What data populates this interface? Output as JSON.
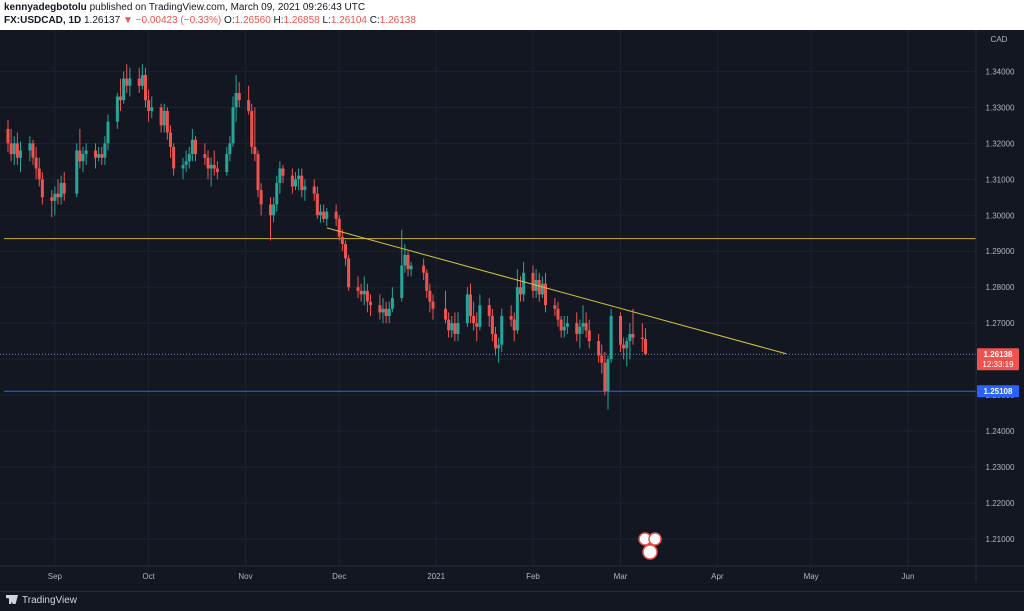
{
  "header": {
    "author": "kennyadegbotolu",
    "published": " published on TradingView.com, March 09, 2021 09:26:43 UTC",
    "symbol": "FX:USDCAD, 1D",
    "last": "1.26137",
    "change_arrow": "▼",
    "change": "−0.00423 (−0.33%)",
    "open_label": "O:",
    "open": "1.26560",
    "high_label": "H:",
    "high": "1.26858",
    "low_label": "L:",
    "low": "1.26104",
    "close_label": "C:",
    "close": "1.26138"
  },
  "footer": {
    "brand": "TradingView"
  },
  "colors": {
    "background": "#131722",
    "up": "#26a69a",
    "down": "#ef5350",
    "grid": "#1f2330",
    "horizontal_level": "#c9b038",
    "trendline": "#d4c73a",
    "blue_level": "#2962ff"
  },
  "chart_data": {
    "type": "candlestick",
    "currency": "CAD",
    "y_ticks": [
      "1.34000",
      "1.33000",
      "1.32000",
      "1.31000",
      "1.30000",
      "1.29000",
      "1.28000",
      "1.27000",
      "1.26000",
      "1.25000",
      "1.24000",
      "1.23000",
      "1.22000",
      "1.21000"
    ],
    "x_ticks": [
      "Sep",
      "Oct",
      "Nov",
      "Dec",
      "2021",
      "Feb",
      "Mar",
      "Apr",
      "May",
      "Jun"
    ],
    "ylim": [
      1.2025,
      1.3515
    ],
    "grid": true,
    "price_labels": [
      {
        "value": 1.26138,
        "text": "1.26138",
        "sub": "12:33:19",
        "color": "#ef5350"
      },
      {
        "value": 1.25108,
        "text": "1.25108",
        "sub": "",
        "color": "#2962ff"
      }
    ],
    "horizontal_levels": [
      {
        "value": 1.2935,
        "color": "#c9b038"
      },
      {
        "value": 1.25108,
        "color": "#2962ff"
      }
    ],
    "trendline": {
      "x1": "2020-11-27",
      "y1": 1.2965,
      "x2": "2021-04-23",
      "y2": 1.2615
    },
    "candles": [
      {
        "d": "2020-08-17",
        "o": 1.324,
        "h": 1.3265,
        "l": 1.3175,
        "c": 1.32
      },
      {
        "d": "2020-08-18",
        "o": 1.32,
        "h": 1.324,
        "l": 1.315,
        "c": 1.317
      },
      {
        "d": "2020-08-19",
        "o": 1.317,
        "h": 1.322,
        "l": 1.314,
        "c": 1.32
      },
      {
        "d": "2020-08-20",
        "o": 1.32,
        "h": 1.323,
        "l": 1.314,
        "c": 1.316
      },
      {
        "d": "2020-08-21",
        "o": 1.316,
        "h": 1.3205,
        "l": 1.312,
        "c": 1.318
      },
      {
        "d": "2020-08-24",
        "o": 1.318,
        "h": 1.322,
        "l": 1.315,
        "c": 1.32
      },
      {
        "d": "2020-08-25",
        "o": 1.32,
        "h": 1.321,
        "l": 1.314,
        "c": 1.316
      },
      {
        "d": "2020-08-26",
        "o": 1.316,
        "h": 1.319,
        "l": 1.31,
        "c": 1.313
      },
      {
        "d": "2020-08-27",
        "o": 1.313,
        "h": 1.316,
        "l": 1.308,
        "c": 1.31
      },
      {
        "d": "2020-08-28",
        "o": 1.31,
        "h": 1.312,
        "l": 1.303,
        "c": 1.305
      },
      {
        "d": "2020-08-31",
        "o": 1.305,
        "h": 1.307,
        "l": 1.2995,
        "c": 1.304
      },
      {
        "d": "2020-09-01",
        "o": 1.304,
        "h": 1.308,
        "l": 1.3,
        "c": 1.306
      },
      {
        "d": "2020-09-02",
        "o": 1.306,
        "h": 1.31,
        "l": 1.303,
        "c": 1.305
      },
      {
        "d": "2020-09-03",
        "o": 1.305,
        "h": 1.311,
        "l": 1.303,
        "c": 1.309
      },
      {
        "d": "2020-09-04",
        "o": 1.309,
        "h": 1.312,
        "l": 1.304,
        "c": 1.306
      },
      {
        "d": "2020-09-08",
        "o": 1.306,
        "h": 1.32,
        "l": 1.305,
        "c": 1.318
      },
      {
        "d": "2020-09-09",
        "o": 1.318,
        "h": 1.324,
        "l": 1.313,
        "c": 1.315
      },
      {
        "d": "2020-09-10",
        "o": 1.315,
        "h": 1.319,
        "l": 1.312,
        "c": 1.317
      },
      {
        "d": "2020-09-11",
        "o": 1.317,
        "h": 1.32,
        "l": 1.314,
        "c": 1.318
      },
      {
        "d": "2020-09-14",
        "o": 1.318,
        "h": 1.32,
        "l": 1.313,
        "c": 1.316
      },
      {
        "d": "2020-09-15",
        "o": 1.316,
        "h": 1.319,
        "l": 1.315,
        "c": 1.317
      },
      {
        "d": "2020-09-16",
        "o": 1.317,
        "h": 1.319,
        "l": 1.314,
        "c": 1.316
      },
      {
        "d": "2020-09-17",
        "o": 1.316,
        "h": 1.322,
        "l": 1.314,
        "c": 1.32
      },
      {
        "d": "2020-09-18",
        "o": 1.32,
        "h": 1.328,
        "l": 1.318,
        "c": 1.326
      },
      {
        "d": "2020-09-21",
        "o": 1.326,
        "h": 1.334,
        "l": 1.324,
        "c": 1.333
      },
      {
        "d": "2020-09-22",
        "o": 1.333,
        "h": 1.338,
        "l": 1.329,
        "c": 1.332
      },
      {
        "d": "2020-09-23",
        "o": 1.332,
        "h": 1.34,
        "l": 1.331,
        "c": 1.338
      },
      {
        "d": "2020-09-24",
        "o": 1.338,
        "h": 1.342,
        "l": 1.334,
        "c": 1.336
      },
      {
        "d": "2020-09-25",
        "o": 1.336,
        "h": 1.341,
        "l": 1.333,
        "c": 1.338
      },
      {
        "d": "2020-09-28",
        "o": 1.338,
        "h": 1.341,
        "l": 1.334,
        "c": 1.336
      },
      {
        "d": "2020-09-29",
        "o": 1.336,
        "h": 1.342,
        "l": 1.335,
        "c": 1.339
      },
      {
        "d": "2020-09-30",
        "o": 1.339,
        "h": 1.341,
        "l": 1.33,
        "c": 1.332
      },
      {
        "d": "2020-10-01",
        "o": 1.332,
        "h": 1.335,
        "l": 1.326,
        "c": 1.329
      },
      {
        "d": "2020-10-02",
        "o": 1.329,
        "h": 1.333,
        "l": 1.327,
        "c": 1.33
      },
      {
        "d": "2020-10-05",
        "o": 1.33,
        "h": 1.331,
        "l": 1.323,
        "c": 1.325
      },
      {
        "d": "2020-10-06",
        "o": 1.325,
        "h": 1.331,
        "l": 1.323,
        "c": 1.329
      },
      {
        "d": "2020-10-07",
        "o": 1.329,
        "h": 1.33,
        "l": 1.321,
        "c": 1.323
      },
      {
        "d": "2020-10-08",
        "o": 1.323,
        "h": 1.325,
        "l": 1.316,
        "c": 1.319
      },
      {
        "d": "2020-10-09",
        "o": 1.319,
        "h": 1.32,
        "l": 1.311,
        "c": 1.313
      },
      {
        "d": "2020-10-12",
        "o": 1.313,
        "h": 1.316,
        "l": 1.31,
        "c": 1.314
      },
      {
        "d": "2020-10-13",
        "o": 1.314,
        "h": 1.318,
        "l": 1.312,
        "c": 1.315
      },
      {
        "d": "2020-10-14",
        "o": 1.315,
        "h": 1.319,
        "l": 1.313,
        "c": 1.317
      },
      {
        "d": "2020-10-15",
        "o": 1.317,
        "h": 1.324,
        "l": 1.315,
        "c": 1.321
      },
      {
        "d": "2020-10-16",
        "o": 1.321,
        "h": 1.322,
        "l": 1.315,
        "c": 1.317
      },
      {
        "d": "2020-10-19",
        "o": 1.317,
        "h": 1.32,
        "l": 1.314,
        "c": 1.316
      },
      {
        "d": "2020-10-20",
        "o": 1.316,
        "h": 1.318,
        "l": 1.31,
        "c": 1.313
      },
      {
        "d": "2020-10-21",
        "o": 1.313,
        "h": 1.316,
        "l": 1.308,
        "c": 1.314
      },
      {
        "d": "2020-10-22",
        "o": 1.314,
        "h": 1.318,
        "l": 1.311,
        "c": 1.313
      },
      {
        "d": "2020-10-23",
        "o": 1.313,
        "h": 1.315,
        "l": 1.31,
        "c": 1.312
      },
      {
        "d": "2020-10-26",
        "o": 1.312,
        "h": 1.319,
        "l": 1.311,
        "c": 1.317
      },
      {
        "d": "2020-10-27",
        "o": 1.317,
        "h": 1.322,
        "l": 1.315,
        "c": 1.32
      },
      {
        "d": "2020-10-28",
        "o": 1.32,
        "h": 1.333,
        "l": 1.319,
        "c": 1.33
      },
      {
        "d": "2020-10-29",
        "o": 1.33,
        "h": 1.339,
        "l": 1.326,
        "c": 1.334
      },
      {
        "d": "2020-10-30",
        "o": 1.334,
        "h": 1.337,
        "l": 1.33,
        "c": 1.332
      },
      {
        "d": "2020-11-02",
        "o": 1.332,
        "h": 1.336,
        "l": 1.328,
        "c": 1.329
      },
      {
        "d": "2020-11-03",
        "o": 1.329,
        "h": 1.331,
        "l": 1.317,
        "c": 1.319
      },
      {
        "d": "2020-11-04",
        "o": 1.319,
        "h": 1.33,
        "l": 1.315,
        "c": 1.317
      },
      {
        "d": "2020-11-05",
        "o": 1.317,
        "h": 1.318,
        "l": 1.305,
        "c": 1.307
      },
      {
        "d": "2020-11-06",
        "o": 1.307,
        "h": 1.309,
        "l": 1.3,
        "c": 1.303
      },
      {
        "d": "2020-11-09",
        "o": 1.303,
        "h": 1.305,
        "l": 1.293,
        "c": 1.3
      },
      {
        "d": "2020-11-10",
        "o": 1.3,
        "h": 1.305,
        "l": 1.298,
        "c": 1.303
      },
      {
        "d": "2020-11-11",
        "o": 1.303,
        "h": 1.311,
        "l": 1.301,
        "c": 1.309
      },
      {
        "d": "2020-11-12",
        "o": 1.309,
        "h": 1.315,
        "l": 1.306,
        "c": 1.313
      },
      {
        "d": "2020-11-13",
        "o": 1.313,
        "h": 1.314,
        "l": 1.309,
        "c": 1.311
      },
      {
        "d": "2020-11-16",
        "o": 1.311,
        "h": 1.313,
        "l": 1.306,
        "c": 1.308
      },
      {
        "d": "2020-11-17",
        "o": 1.308,
        "h": 1.312,
        "l": 1.307,
        "c": 1.31
      },
      {
        "d": "2020-11-18",
        "o": 1.31,
        "h": 1.313,
        "l": 1.307,
        "c": 1.311
      },
      {
        "d": "2020-11-19",
        "o": 1.311,
        "h": 1.313,
        "l": 1.305,
        "c": 1.307
      },
      {
        "d": "2020-11-20",
        "o": 1.307,
        "h": 1.31,
        "l": 1.304,
        "c": 1.308
      },
      {
        "d": "2020-11-23",
        "o": 1.308,
        "h": 1.31,
        "l": 1.304,
        "c": 1.306
      },
      {
        "d": "2020-11-24",
        "o": 1.306,
        "h": 1.308,
        "l": 1.299,
        "c": 1.3
      },
      {
        "d": "2020-11-25",
        "o": 1.3,
        "h": 1.303,
        "l": 1.298,
        "c": 1.301
      },
      {
        "d": "2020-11-26",
        "o": 1.301,
        "h": 1.303,
        "l": 1.298,
        "c": 1.299
      },
      {
        "d": "2020-11-27",
        "o": 1.299,
        "h": 1.302,
        "l": 1.297,
        "c": 1.301
      },
      {
        "d": "2020-11-30",
        "o": 1.301,
        "h": 1.303,
        "l": 1.297,
        "c": 1.299
      },
      {
        "d": "2020-12-01",
        "o": 1.299,
        "h": 1.3,
        "l": 1.293,
        "c": 1.294
      },
      {
        "d": "2020-12-02",
        "o": 1.294,
        "h": 1.296,
        "l": 1.29,
        "c": 1.292
      },
      {
        "d": "2020-12-03",
        "o": 1.292,
        "h": 1.293,
        "l": 1.286,
        "c": 1.288
      },
      {
        "d": "2020-12-04",
        "o": 1.288,
        "h": 1.289,
        "l": 1.279,
        "c": 1.28
      },
      {
        "d": "2020-12-07",
        "o": 1.28,
        "h": 1.283,
        "l": 1.277,
        "c": 1.279
      },
      {
        "d": "2020-12-08",
        "o": 1.279,
        "h": 1.281,
        "l": 1.276,
        "c": 1.278
      },
      {
        "d": "2020-12-09",
        "o": 1.278,
        "h": 1.283,
        "l": 1.275,
        "c": 1.279
      },
      {
        "d": "2020-12-10",
        "o": 1.279,
        "h": 1.281,
        "l": 1.273,
        "c": 1.276
      },
      {
        "d": "2020-12-11",
        "o": 1.276,
        "h": 1.278,
        "l": 1.272,
        "c": 1.275
      },
      {
        "d": "2020-12-14",
        "o": 1.275,
        "h": 1.278,
        "l": 1.271,
        "c": 1.273
      },
      {
        "d": "2020-12-15",
        "o": 1.273,
        "h": 1.277,
        "l": 1.27,
        "c": 1.274
      },
      {
        "d": "2020-12-16",
        "o": 1.274,
        "h": 1.276,
        "l": 1.27,
        "c": 1.272
      },
      {
        "d": "2020-12-17",
        "o": 1.272,
        "h": 1.276,
        "l": 1.27,
        "c": 1.274
      },
      {
        "d": "2020-12-18",
        "o": 1.274,
        "h": 1.28,
        "l": 1.273,
        "c": 1.277
      },
      {
        "d": "2020-12-21",
        "o": 1.277,
        "h": 1.296,
        "l": 1.276,
        "c": 1.286
      },
      {
        "d": "2020-12-22",
        "o": 1.286,
        "h": 1.292,
        "l": 1.284,
        "c": 1.289
      },
      {
        "d": "2020-12-23",
        "o": 1.289,
        "h": 1.29,
        "l": 1.283,
        "c": 1.285
      },
      {
        "d": "2020-12-24",
        "o": 1.285,
        "h": 1.287,
        "l": 1.283,
        "c": 1.286
      },
      {
        "d": "2020-12-28",
        "o": 1.286,
        "h": 1.288,
        "l": 1.282,
        "c": 1.284
      },
      {
        "d": "2020-12-29",
        "o": 1.284,
        "h": 1.285,
        "l": 1.277,
        "c": 1.279
      },
      {
        "d": "2020-12-30",
        "o": 1.279,
        "h": 1.281,
        "l": 1.273,
        "c": 1.276
      },
      {
        "d": "2020-12-31",
        "o": 1.276,
        "h": 1.278,
        "l": 1.271,
        "c": 1.274
      },
      {
        "d": "2021-01-04",
        "o": 1.274,
        "h": 1.279,
        "l": 1.27,
        "c": 1.271
      },
      {
        "d": "2021-01-05",
        "o": 1.271,
        "h": 1.273,
        "l": 1.266,
        "c": 1.268
      },
      {
        "d": "2021-01-06",
        "o": 1.268,
        "h": 1.272,
        "l": 1.266,
        "c": 1.27
      },
      {
        "d": "2021-01-07",
        "o": 1.27,
        "h": 1.273,
        "l": 1.265,
        "c": 1.267
      },
      {
        "d": "2021-01-08",
        "o": 1.267,
        "h": 1.273,
        "l": 1.265,
        "c": 1.27
      },
      {
        "d": "2021-01-11",
        "o": 1.27,
        "h": 1.28,
        "l": 1.269,
        "c": 1.278
      },
      {
        "d": "2021-01-12",
        "o": 1.278,
        "h": 1.281,
        "l": 1.27,
        "c": 1.272
      },
      {
        "d": "2021-01-13",
        "o": 1.272,
        "h": 1.276,
        "l": 1.268,
        "c": 1.27
      },
      {
        "d": "2021-01-14",
        "o": 1.27,
        "h": 1.273,
        "l": 1.265,
        "c": 1.269
      },
      {
        "d": "2021-01-15",
        "o": 1.269,
        "h": 1.278,
        "l": 1.268,
        "c": 1.275
      },
      {
        "d": "2021-01-18",
        "o": 1.275,
        "h": 1.277,
        "l": 1.269,
        "c": 1.272
      },
      {
        "d": "2021-01-19",
        "o": 1.272,
        "h": 1.274,
        "l": 1.265,
        "c": 1.267
      },
      {
        "d": "2021-01-20",
        "o": 1.267,
        "h": 1.269,
        "l": 1.261,
        "c": 1.263
      },
      {
        "d": "2021-01-21",
        "o": 1.263,
        "h": 1.266,
        "l": 1.259,
        "c": 1.264
      },
      {
        "d": "2021-01-22",
        "o": 1.264,
        "h": 1.274,
        "l": 1.262,
        "c": 1.272
      },
      {
        "d": "2021-01-25",
        "o": 1.272,
        "h": 1.275,
        "l": 1.269,
        "c": 1.271
      },
      {
        "d": "2021-01-26",
        "o": 1.271,
        "h": 1.273,
        "l": 1.265,
        "c": 1.268
      },
      {
        "d": "2021-01-27",
        "o": 1.268,
        "h": 1.285,
        "l": 1.267,
        "c": 1.28
      },
      {
        "d": "2021-01-28",
        "o": 1.28,
        "h": 1.283,
        "l": 1.276,
        "c": 1.278
      },
      {
        "d": "2021-01-29",
        "o": 1.278,
        "h": 1.287,
        "l": 1.276,
        "c": 1.284
      },
      {
        "d": "2021-02-01",
        "o": 1.284,
        "h": 1.286,
        "l": 1.277,
        "c": 1.279
      },
      {
        "d": "2021-02-02",
        "o": 1.279,
        "h": 1.285,
        "l": 1.277,
        "c": 1.282
      },
      {
        "d": "2021-02-03",
        "o": 1.282,
        "h": 1.284,
        "l": 1.276,
        "c": 1.278
      },
      {
        "d": "2021-02-04",
        "o": 1.278,
        "h": 1.283,
        "l": 1.277,
        "c": 1.281
      },
      {
        "d": "2021-02-05",
        "o": 1.281,
        "h": 1.284,
        "l": 1.273,
        "c": 1.275
      },
      {
        "d": "2021-02-08",
        "o": 1.275,
        "h": 1.277,
        "l": 1.272,
        "c": 1.274
      },
      {
        "d": "2021-02-09",
        "o": 1.274,
        "h": 1.276,
        "l": 1.269,
        "c": 1.271
      },
      {
        "d": "2021-02-10",
        "o": 1.271,
        "h": 1.272,
        "l": 1.266,
        "c": 1.268
      },
      {
        "d": "2021-02-11",
        "o": 1.268,
        "h": 1.272,
        "l": 1.266,
        "c": 1.269
      },
      {
        "d": "2021-02-12",
        "o": 1.269,
        "h": 1.272,
        "l": 1.267,
        "c": 1.27
      },
      {
        "d": "2021-02-15",
        "o": 1.27,
        "h": 1.273,
        "l": 1.265,
        "c": 1.267
      },
      {
        "d": "2021-02-16",
        "o": 1.267,
        "h": 1.271,
        "l": 1.263,
        "c": 1.269
      },
      {
        "d": "2021-02-17",
        "o": 1.269,
        "h": 1.275,
        "l": 1.267,
        "c": 1.27
      },
      {
        "d": "2021-02-18",
        "o": 1.27,
        "h": 1.273,
        "l": 1.266,
        "c": 1.268
      },
      {
        "d": "2021-02-19",
        "o": 1.268,
        "h": 1.271,
        "l": 1.263,
        "c": 1.265
      },
      {
        "d": "2021-02-22",
        "o": 1.265,
        "h": 1.267,
        "l": 1.259,
        "c": 1.261
      },
      {
        "d": "2021-02-23",
        "o": 1.261,
        "h": 1.264,
        "l": 1.256,
        "c": 1.259
      },
      {
        "d": "2021-02-24",
        "o": 1.259,
        "h": 1.262,
        "l": 1.25,
        "c": 1.251
      },
      {
        "d": "2021-02-25",
        "o": 1.251,
        "h": 1.261,
        "l": 1.246,
        "c": 1.26
      },
      {
        "d": "2021-02-26",
        "o": 1.26,
        "h": 1.274,
        "l": 1.259,
        "c": 1.272
      },
      {
        "d": "2021-03-01",
        "o": 1.272,
        "h": 1.273,
        "l": 1.262,
        "c": 1.264
      },
      {
        "d": "2021-03-02",
        "o": 1.264,
        "h": 1.266,
        "l": 1.26,
        "c": 1.263
      },
      {
        "d": "2021-03-03",
        "o": 1.263,
        "h": 1.266,
        "l": 1.258,
        "c": 1.265
      },
      {
        "d": "2021-03-04",
        "o": 1.265,
        "h": 1.27,
        "l": 1.26,
        "c": 1.267
      },
      {
        "d": "2021-03-05",
        "o": 1.267,
        "h": 1.274,
        "l": 1.264,
        "c": 1.266
      },
      {
        "d": "2021-03-08",
        "o": 1.266,
        "h": 1.27,
        "l": 1.262,
        "c": 1.2656
      },
      {
        "d": "2021-03-09",
        "o": 1.2656,
        "h": 1.26858,
        "l": 1.26104,
        "c": 1.26138
      }
    ]
  }
}
